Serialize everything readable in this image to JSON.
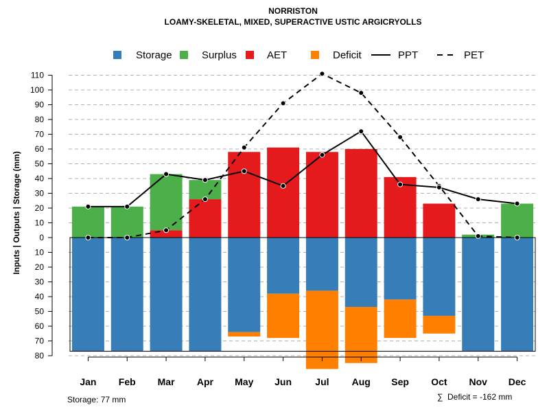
{
  "chart_data": {
    "type": "bar",
    "title": "NORRISTON",
    "subtitle": "LOAMY-SKELETAL, MIXED, SUPERACTIVE USTIC ARGICRYOLLS",
    "ylabel": "Inputs | Outputs | Storage    (mm)",
    "categories": [
      "Jan",
      "Feb",
      "Mar",
      "Apr",
      "May",
      "Jun",
      "Jul",
      "Aug",
      "Sep",
      "Oct",
      "Nov",
      "Dec"
    ],
    "ylim": [
      -80,
      115
    ],
    "y_ticks": [
      {
        "value": 110,
        "label": "110"
      },
      {
        "value": 100,
        "label": "100"
      },
      {
        "value": 90,
        "label": "90"
      },
      {
        "value": 80,
        "label": "80"
      },
      {
        "value": 70,
        "label": "70"
      },
      {
        "value": 60,
        "label": "60"
      },
      {
        "value": 50,
        "label": "50"
      },
      {
        "value": 40,
        "label": "40"
      },
      {
        "value": 30,
        "label": "30"
      },
      {
        "value": 20,
        "label": "20"
      },
      {
        "value": 10,
        "label": "10"
      },
      {
        "value": 0,
        "label": "0"
      },
      {
        "value": -10,
        "label": "10"
      },
      {
        "value": -20,
        "label": "20"
      },
      {
        "value": -30,
        "label": "30"
      },
      {
        "value": -40,
        "label": "40"
      },
      {
        "value": -50,
        "label": "50"
      },
      {
        "value": -60,
        "label": "60"
      },
      {
        "value": -70,
        "label": "70"
      },
      {
        "value": -80,
        "label": "80"
      }
    ],
    "storage_capacity": 77,
    "series": [
      {
        "name": "Storage",
        "color": "#377eb8",
        "kind": "bar_below",
        "values": [
          77,
          77,
          77,
          77,
          64,
          38,
          36,
          47,
          42,
          53,
          77,
          77
        ]
      },
      {
        "name": "Surplus",
        "color": "#4daf4a",
        "kind": "bar_above",
        "values": [
          21,
          21,
          38,
          13,
          0,
          0,
          0,
          0,
          0,
          0,
          2,
          23
        ]
      },
      {
        "name": "AET",
        "color": "#e41a1c",
        "kind": "bar_above",
        "values": [
          0,
          0,
          5,
          26,
          58,
          61,
          58,
          60,
          41,
          23,
          0,
          0
        ]
      },
      {
        "name": "Deficit",
        "color": "#ff7f00",
        "kind": "bar_below",
        "values": [
          0,
          0,
          0,
          0,
          3,
          30,
          53,
          38,
          26,
          12,
          0,
          0
        ]
      },
      {
        "name": "PPT",
        "color": "#000000",
        "kind": "line_solid",
        "values": [
          21,
          21,
          43,
          39,
          45,
          35,
          56,
          72,
          36,
          34,
          26,
          23
        ]
      },
      {
        "name": "PET",
        "color": "#000000",
        "kind": "line_dashed",
        "values": [
          0,
          0,
          5,
          26,
          61,
          91,
          111,
          98,
          68,
          35,
          1,
          0
        ]
      }
    ],
    "legend": [
      "Storage",
      "Surplus",
      "AET",
      "Deficit",
      "PPT",
      "PET"
    ],
    "legend_position": "top",
    "grid": true
  },
  "footer": {
    "storage_text": "Storage: 77 mm",
    "deficit_symbol": "∑",
    "deficit_text": "Deficit = -162 mm"
  }
}
